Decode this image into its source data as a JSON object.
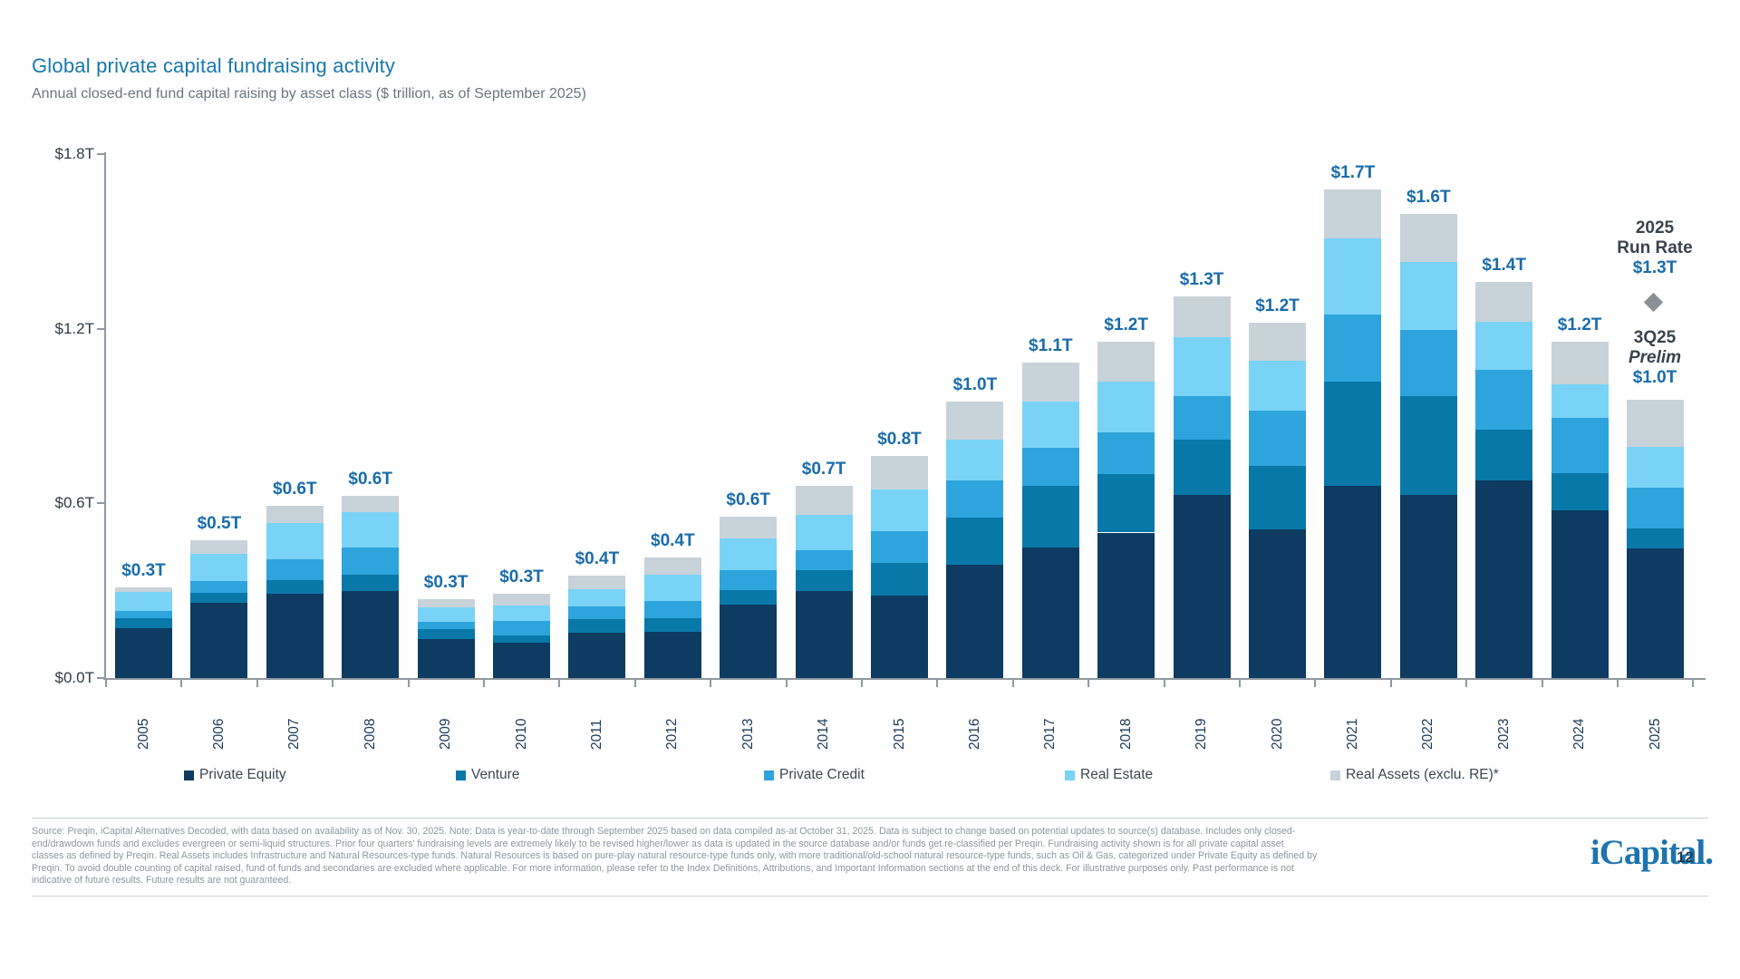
{
  "header": {
    "title": "Global private capital fundraising activity",
    "subtitle": "Annual closed-end fund capital raising by asset class ($ trillion, as of September 2025)"
  },
  "chart_data": {
    "type": "bar",
    "stacked": true,
    "title": "Global private capital fundraising activity",
    "unit": "$ trillion",
    "ylim": [
      0,
      1.8
    ],
    "grid": false,
    "legend_position": "bottom",
    "y_ticks": [
      {
        "label": "$1.8T",
        "value": 1.8
      },
      {
        "label": "$1.2T",
        "value": 1.2
      },
      {
        "label": "$0.6T",
        "value": 0.6
      },
      {
        "label": "$0.0T",
        "value": 0.0
      }
    ],
    "categories": [
      "2005",
      "2006",
      "2007",
      "2008",
      "2009",
      "2010",
      "2011",
      "2012",
      "2013",
      "2014",
      "2015",
      "2016",
      "2017",
      "2018",
      "2019",
      "2020",
      "2021",
      "2022",
      "2023",
      "2024",
      "2025"
    ],
    "series": [
      {
        "name": "Private Equity",
        "color": "#0d3b61",
        "values": [
          0.17,
          0.26,
          0.29,
          0.3,
          0.135,
          0.12,
          0.155,
          0.158,
          0.253,
          0.3,
          0.285,
          0.39,
          0.45,
          0.5,
          0.63,
          0.51,
          0.66,
          0.63,
          0.68,
          0.575,
          0.445
        ]
      },
      {
        "name": "Venture",
        "color": "#0878a9",
        "values": [
          0.035,
          0.033,
          0.046,
          0.054,
          0.033,
          0.027,
          0.048,
          0.049,
          0.048,
          0.07,
          0.11,
          0.16,
          0.21,
          0.2,
          0.19,
          0.22,
          0.36,
          0.34,
          0.175,
          0.13,
          0.07
        ]
      },
      {
        "name": "Private Credit",
        "color": "#2ea4dc",
        "values": [
          0.025,
          0.04,
          0.071,
          0.094,
          0.026,
          0.048,
          0.044,
          0.058,
          0.071,
          0.07,
          0.109,
          0.13,
          0.13,
          0.145,
          0.15,
          0.19,
          0.23,
          0.225,
          0.205,
          0.19,
          0.14
        ]
      },
      {
        "name": "Real Estate",
        "color": "#79d3f7",
        "values": [
          0.065,
          0.095,
          0.127,
          0.122,
          0.048,
          0.054,
          0.058,
          0.09,
          0.107,
          0.12,
          0.143,
          0.14,
          0.16,
          0.175,
          0.2,
          0.17,
          0.26,
          0.235,
          0.165,
          0.115,
          0.14
        ]
      },
      {
        "name": "Real Assets (exclu. RE)*",
        "color": "#c8d2d9",
        "values": [
          0.015,
          0.045,
          0.059,
          0.057,
          0.029,
          0.041,
          0.046,
          0.058,
          0.076,
          0.1,
          0.117,
          0.13,
          0.135,
          0.135,
          0.14,
          0.13,
          0.17,
          0.165,
          0.135,
          0.145,
          0.16
        ]
      }
    ],
    "bar_total_labels": [
      "$0.3T",
      "$0.5T",
      "$0.6T",
      "$0.6T",
      "$0.3T",
      "$0.3T",
      "$0.4T",
      "$0.4T",
      "$0.6T",
      "$0.7T",
      "$0.8T",
      "$1.0T",
      "$1.1T",
      "$1.2T",
      "$1.3T",
      "$1.2T",
      "$1.7T",
      "$1.6T",
      "$1.4T",
      "$1.2T",
      ""
    ],
    "annotations": {
      "run_rate": {
        "line1": "2025",
        "line2": "Run Rate",
        "value": "$1.3T",
        "marker": "diamond",
        "marker_value": 1.3
      },
      "prelim": {
        "line1": "3Q25",
        "line2": "Prelim",
        "value": "$1.0T"
      }
    }
  },
  "footer": {
    "source_lines": [
      "Source: Preqin, iCapital Alternatives Decoded, with data based on availability as of Nov. 30, 2025. Note: Data is year-to-date through September 2025 based on data compiled as-at October 31, 2025. Data is subject to change based on potential updates to source(s) database. Includes only closed-",
      "end/drawdown funds and excludes evergreen or semi-liquid structures. Prior four quarters' fundraising levels are extremely likely to be revised higher/lower as data is updated in the source database and/or funds get re-classified per Preqin. Fundraising activity shown is for all private capital asset",
      "classes as defined by Preqin. Real Assets includes Infrastructure and Natural Resources-type funds. Natural Resources is based on pure-play natural resource-type funds only, with more traditional/old-school natural resource-type funds, such as Oil & Gas, categorized under Private Equity as defined by",
      "Preqin. To avoid double counting of capital raised, fund of funds and secondaries are excluded where applicable. For more information, please refer to the Index Definitions, Attributions, and Important Information sections at the end of this deck. For illustrative purposes only. Past performance is not",
      "indicative of future results. Future results are not guaranteed."
    ],
    "logo_text": "iCapital",
    "logo_period": ".",
    "page_number": "12"
  }
}
